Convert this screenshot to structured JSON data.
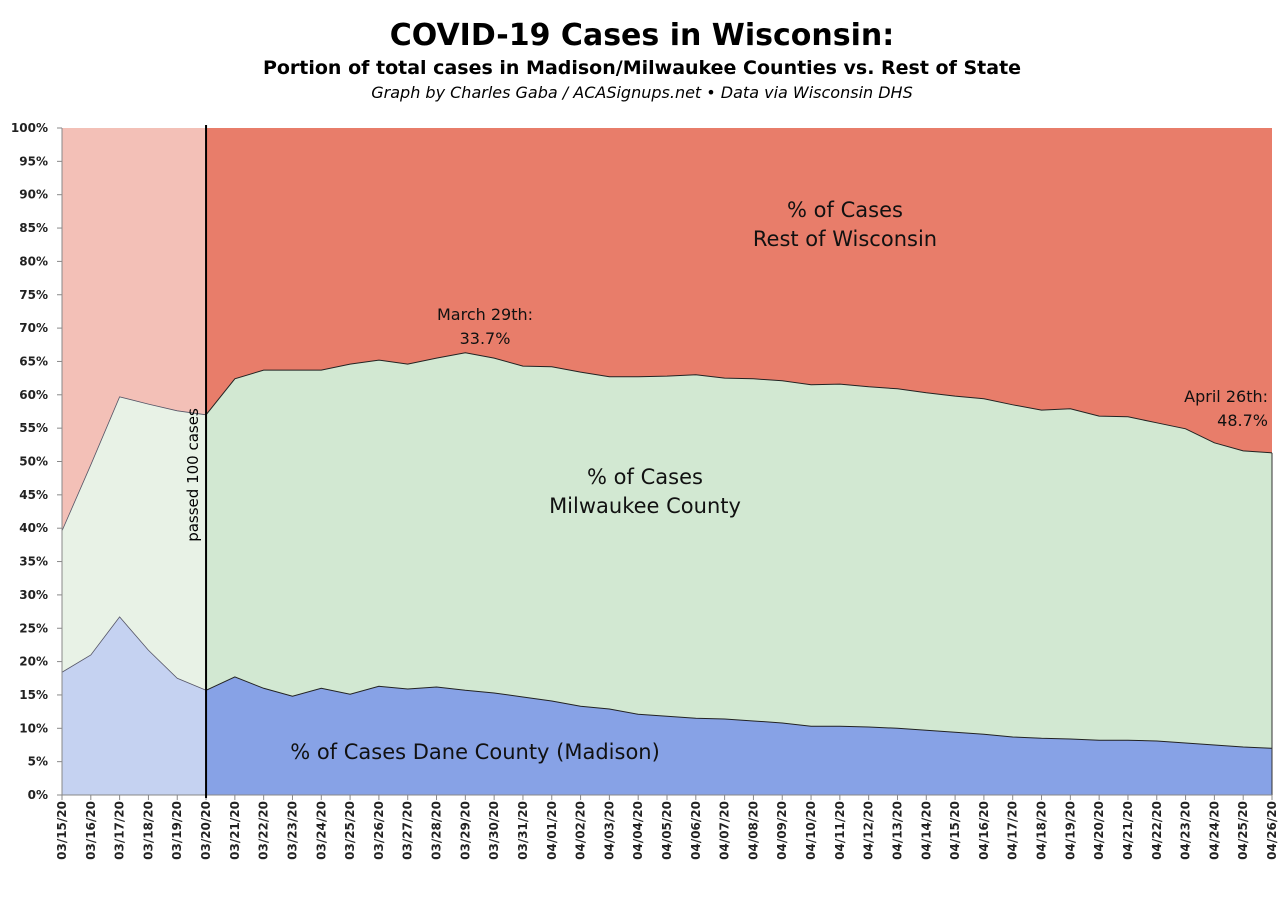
{
  "chart_data": {
    "type": "area",
    "stacked": true,
    "title": "COVID-19 Cases in Wisconsin:",
    "subtitle": "Portion of total cases in Madison/Milwaukee Counties vs. Rest of State",
    "credit": "Graph by Charles Gaba / ACASignups.net  •  Data via Wisconsin DHS",
    "xlabel": "",
    "ylabel": "",
    "ylim": [
      0,
      100
    ],
    "y_ticks": [
      "0%",
      "5%",
      "10%",
      "15%",
      "20%",
      "25%",
      "30%",
      "35%",
      "40%",
      "45%",
      "50%",
      "55%",
      "60%",
      "65%",
      "70%",
      "75%",
      "80%",
      "85%",
      "90%",
      "95%",
      "100%"
    ],
    "categories": [
      "03/15/20",
      "03/16/20",
      "03/17/20",
      "03/18/20",
      "03/19/20",
      "03/20/20",
      "03/21/20",
      "03/22/20",
      "03/23/20",
      "03/24/20",
      "03/25/20",
      "03/26/20",
      "03/27/20",
      "03/28/20",
      "03/29/20",
      "03/30/20",
      "03/31/20",
      "04/01/20",
      "04/02/20",
      "04/03/20",
      "04/04/20",
      "04/05/20",
      "04/06/20",
      "04/07/20",
      "04/08/20",
      "04/09/20",
      "04/10/20",
      "04/11/20",
      "04/12/20",
      "04/13/20",
      "04/14/20",
      "04/15/20",
      "04/16/20",
      "04/17/20",
      "04/18/20",
      "04/19/20",
      "04/20/20",
      "04/21/20",
      "04/22/20",
      "04/23/20",
      "04/24/20",
      "04/25/20",
      "04/26/20"
    ],
    "series": [
      {
        "key": "dane",
        "values": [
          18.4,
          21,
          26.7,
          21.7,
          17.5,
          15.7,
          17.7,
          16,
          14.8,
          16,
          15.1,
          16.3,
          15.9,
          16.2,
          15.7,
          15.3,
          14.7,
          14.1,
          13.3,
          12.9,
          12.1,
          11.8,
          11.5,
          11.4,
          11.1,
          10.8,
          10.3,
          10.3,
          10.2,
          10,
          9.7,
          9.4,
          9.1,
          8.7,
          8.5,
          8.4,
          8.2,
          8.2,
          8.1,
          7.8,
          7.5,
          7.2,
          7.0
        ]
      },
      {
        "key": "milwaukee",
        "values": [
          21.2,
          28.5,
          33.0,
          36.9,
          40.1,
          41.3,
          44.7,
          47.7,
          48.9,
          47.7,
          49.5,
          48.9,
          48.7,
          49.3,
          50.6,
          50.2,
          49.6,
          50.1,
          50.1,
          49.8,
          50.6,
          51.0,
          51.5,
          51.1,
          51.3,
          51.3,
          51.2,
          51.3,
          51.0,
          50.9,
          50.6,
          50.4,
          50.3,
          49.8,
          49.2,
          49.5,
          48.6,
          48.5,
          47.7,
          47.1,
          45.3,
          44.4,
          44.3
        ]
      },
      {
        "key": "rest",
        "values": [
          60.4,
          50.5,
          40.3,
          41.4,
          42.4,
          43,
          37.6,
          36.3,
          36.3,
          36.3,
          35.4,
          34.8,
          35.4,
          34.5,
          33.7,
          34.5,
          35.7,
          35.8,
          36.6,
          37.3,
          37.3,
          37.2,
          37,
          37.5,
          37.6,
          37.9,
          38.5,
          38.4,
          38.8,
          39.1,
          39.7,
          40.2,
          40.6,
          41.5,
          42.3,
          42.1,
          43.2,
          43.3,
          44.2,
          45.1,
          47.2,
          48.4,
          48.7
        ]
      }
    ],
    "colors": {
      "dane": "#87a2e6",
      "dane_pre": "#c5d2f1",
      "milwaukee": "#d2e8d2",
      "milwaukee_pre": "#e8f2e6",
      "rest": "#e87d6a",
      "rest_pre": "#f3c0b7"
    },
    "grid": false,
    "legend": "none",
    "annotations": {
      "rest_label": [
        "% of Cases",
        "Rest of Wisconsin"
      ],
      "milwaukee_label": [
        "% of Cases",
        "Milwaukee County"
      ],
      "dane_label": "% of Cases Dane County (Madison)",
      "march29": [
        "March 29th:",
        "33.7%"
      ],
      "april26": [
        "April 26th:",
        "48.7%"
      ],
      "divider": {
        "category": "03/20/20",
        "label": "passed 100 cases"
      }
    }
  }
}
